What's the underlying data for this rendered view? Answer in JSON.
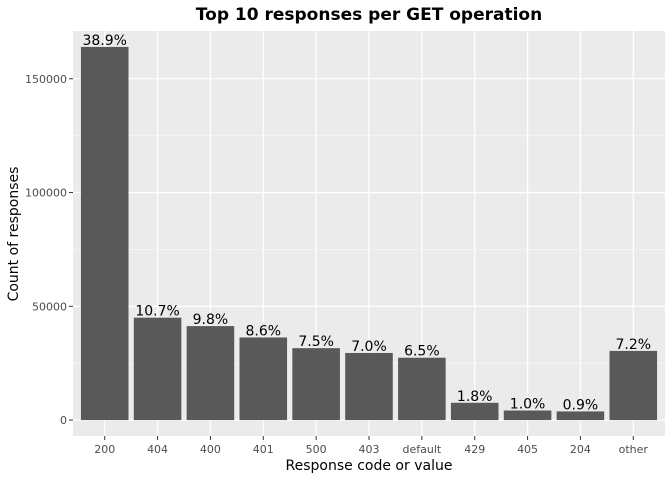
{
  "chart_data": {
    "type": "bar",
    "title": "Top 10 responses per GET operation",
    "xlabel": "Response code or value",
    "ylabel": "Count of responses",
    "categories": [
      "200",
      "404",
      "400",
      "401",
      "500",
      "403",
      "default",
      "429",
      "405",
      "204",
      "other"
    ],
    "values": [
      164000,
      45000,
      41300,
      36300,
      31600,
      29500,
      27400,
      7600,
      4200,
      3800,
      30400
    ],
    "data_labels": [
      "38.9%",
      "10.7%",
      "9.8%",
      "8.6%",
      "7.5%",
      "7.0%",
      "6.5%",
      "1.8%",
      "1.0%",
      "0.9%",
      "7.2%"
    ],
    "y_ticks": [
      0,
      50000,
      100000,
      150000
    ],
    "y_tick_labels": [
      "0",
      "50000",
      "100000",
      "150000"
    ],
    "ylim": [
      -7000,
      171000
    ],
    "grid": true,
    "legend": "none",
    "colors": {
      "bar": "#595959",
      "panel": "#ebebeb",
      "grid_major": "#ffffff",
      "grid_minor": "#f5f5f5",
      "tick": "#333333"
    }
  }
}
